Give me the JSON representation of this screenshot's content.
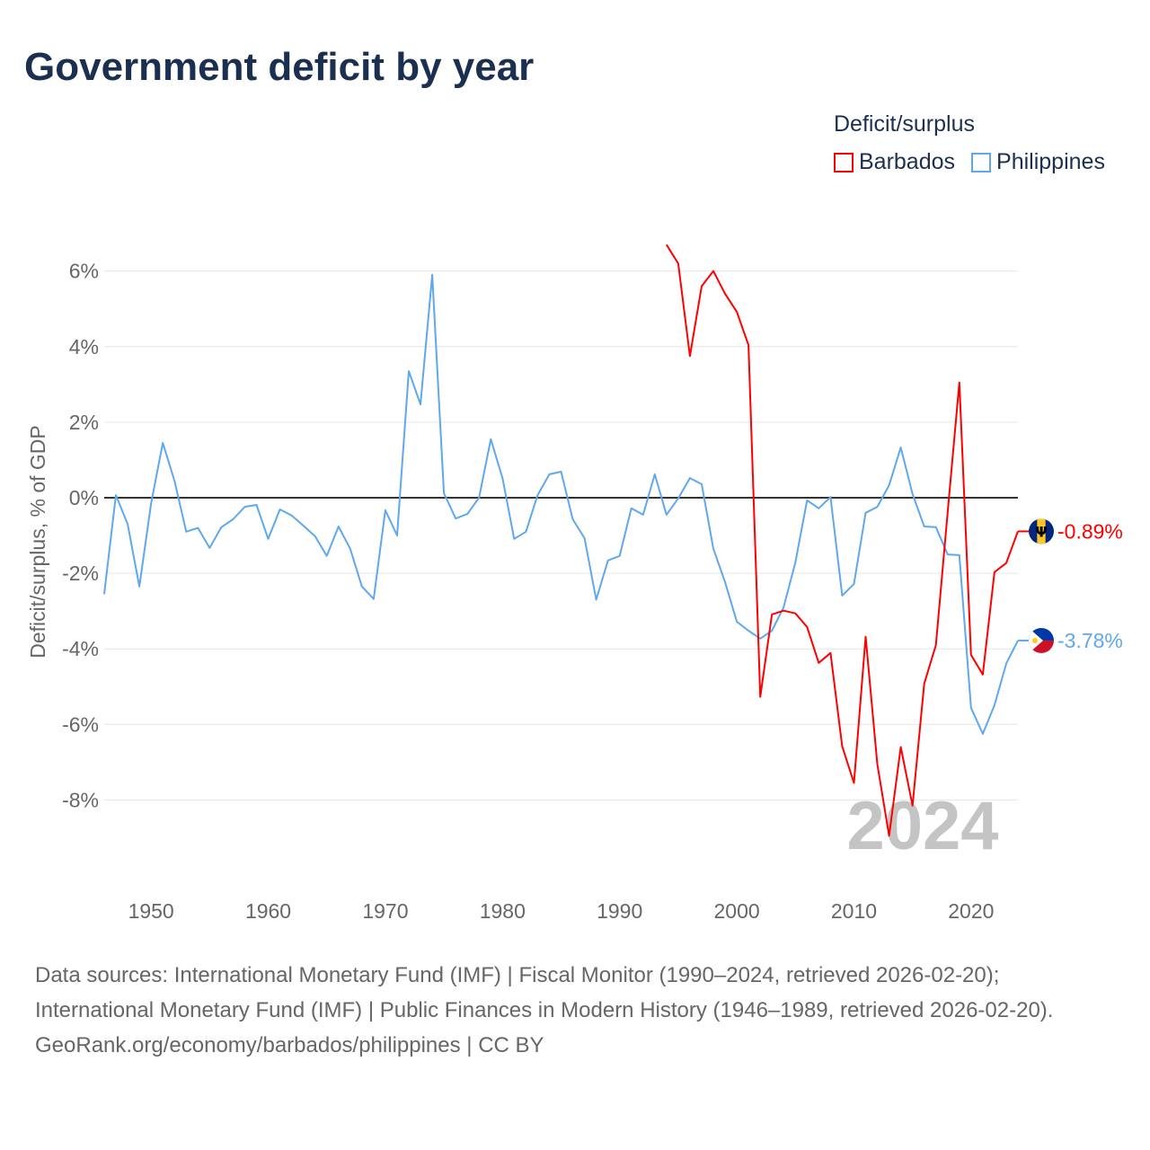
{
  "title": "Government deficit by year",
  "legend": {
    "title": "Deficit/surplus",
    "items": [
      {
        "label": "Barbados",
        "color": "#ff0000"
      },
      {
        "label": "Philippines",
        "color": "#5fa8ee"
      }
    ]
  },
  "watermark_year": "2024",
  "source_lines": [
    "Data sources: International Monetary Fund (IMF) | Fiscal Monitor (1990–2024, retrieved 2026-02-20); International Monetary Fund (IMF) | Public Finances in Modern History (1946–1989, retrieved 2026-02-20).",
    "GeoRank.org/economy/barbados/philippines | CC BY"
  ],
  "chart_data": {
    "type": "line",
    "title": "Government deficit by year",
    "xlabel": "",
    "ylabel": "Deficit/surplus, % of GDP",
    "xlim": [
      1946,
      2024
    ],
    "ylim": [
      -10,
      7
    ],
    "xticks": [
      1950,
      1960,
      1970,
      1980,
      1990,
      2000,
      2010,
      2020
    ],
    "yticks": [
      6,
      4,
      2,
      0,
      -2,
      -4,
      -6,
      -8
    ],
    "ytick_labels": [
      "6%",
      "4%",
      "2%",
      "0%",
      "-2%",
      "-4%",
      "-6%",
      "-8%"
    ],
    "grid": true,
    "legend_position": "top-right",
    "series": [
      {
        "name": "Philippines",
        "color": "#5fa8ee",
        "end_label": "-3.78%",
        "start_year": 1946,
        "values": [
          -2.55,
          0.07,
          -0.7,
          -2.35,
          -0.15,
          1.45,
          0.45,
          -0.9,
          -0.8,
          -1.33,
          -0.78,
          -0.57,
          -0.24,
          -0.19,
          -1.09,
          -0.31,
          -0.47,
          -0.74,
          -1.02,
          -1.54,
          -0.76,
          -1.35,
          -2.35,
          -2.68,
          -0.33,
          -1.0,
          3.35,
          2.47,
          5.9,
          0.12,
          -0.55,
          -0.43,
          0.0,
          1.55,
          0.52,
          -1.09,
          -0.9,
          0.07,
          0.62,
          0.69,
          -0.57,
          -1.07,
          -2.7,
          -1.66,
          -1.54,
          -0.28,
          -0.45,
          0.62,
          -0.45,
          -0.02,
          0.52,
          0.36,
          -1.35,
          -2.23,
          -3.28,
          -3.52,
          -3.73,
          -3.52,
          -2.9,
          -1.71,
          -0.07,
          -0.28,
          0.02,
          -2.59,
          -2.28,
          -0.4,
          -0.24,
          0.33,
          1.33,
          0.1,
          -0.76,
          -0.78,
          -1.5,
          -1.52,
          -5.56,
          -6.25,
          -5.49,
          -4.39,
          -3.78
        ]
      },
      {
        "name": "Barbados",
        "color": "#ff0000",
        "end_label": "-0.89%",
        "start_year": 1994,
        "values": [
          6.7,
          6.2,
          3.75,
          5.6,
          6.0,
          5.4,
          4.92,
          4.04,
          -5.27,
          -3.09,
          -2.99,
          -3.06,
          -3.42,
          -4.37,
          -4.11,
          -6.58,
          -7.55,
          -3.68,
          -7.05,
          -8.95,
          -6.6,
          -8.15,
          -4.92,
          -3.9,
          -0.38,
          3.05,
          -4.16,
          -4.68,
          -1.97,
          -1.73,
          -0.89
        ]
      }
    ]
  }
}
